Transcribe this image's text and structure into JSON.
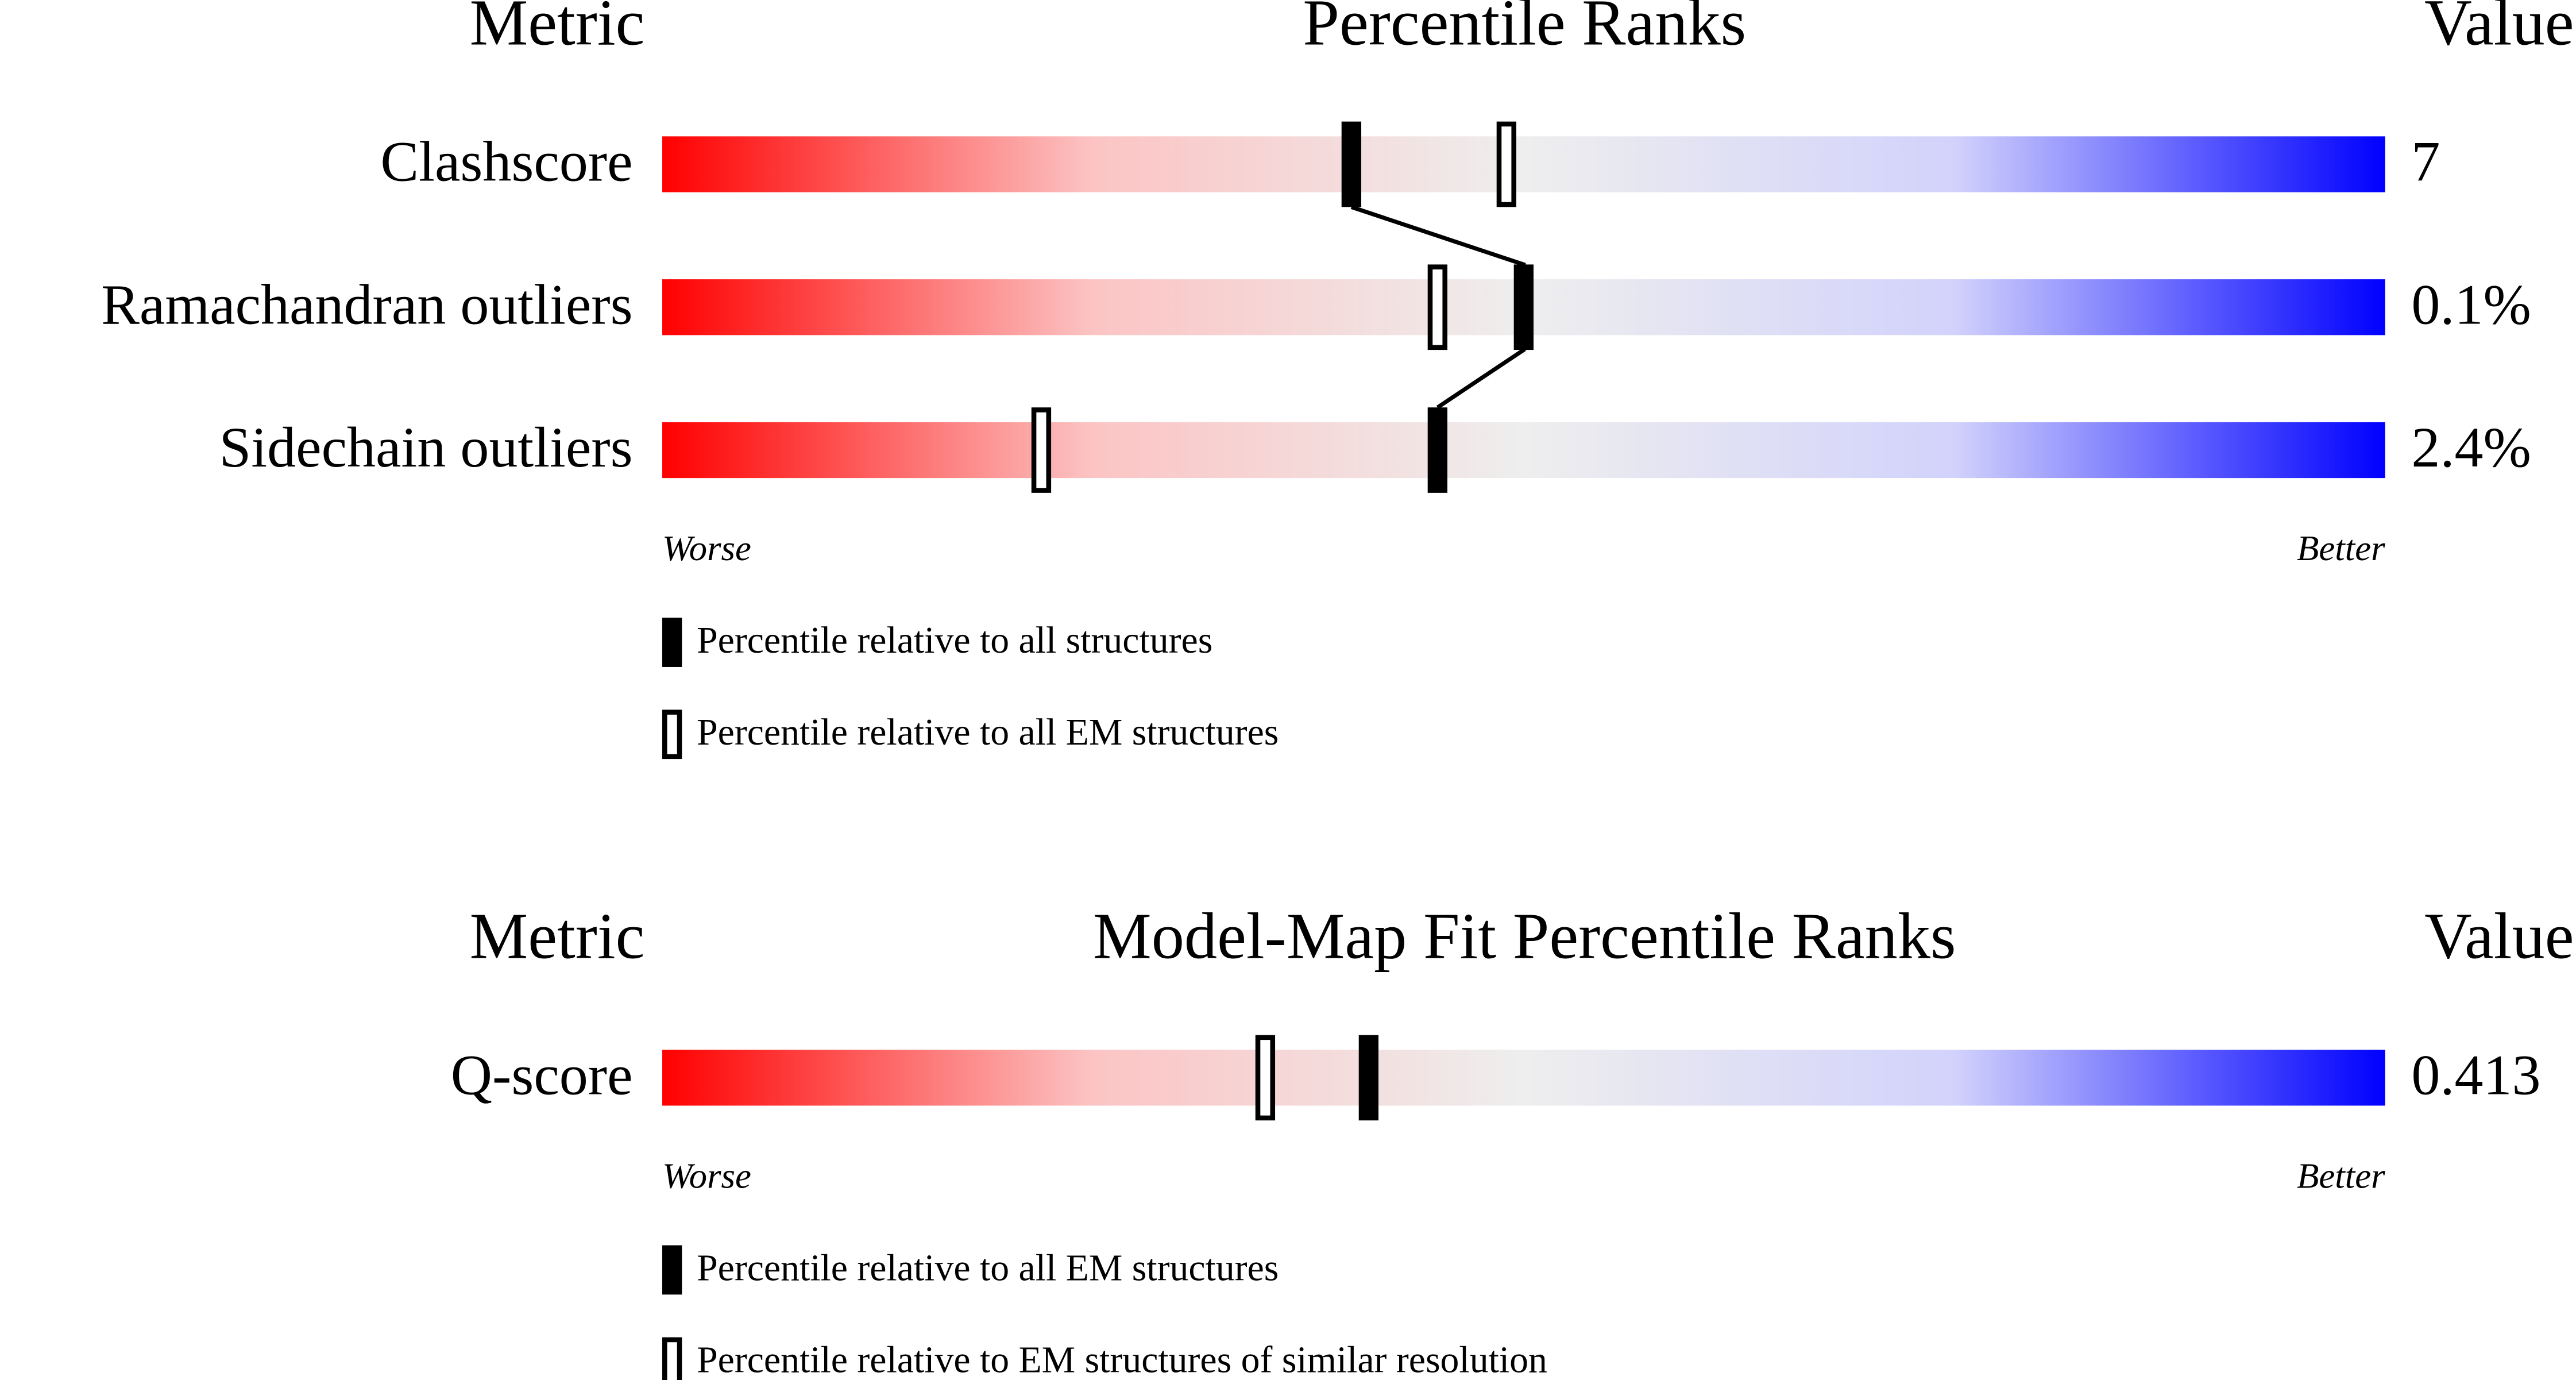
{
  "chart_data": [
    {
      "type": "percentile",
      "header": {
        "metric": "Metric",
        "title": "Percentile Ranks",
        "value": "Value"
      },
      "xlim": [
        0,
        100
      ],
      "categories": [
        "Clashscore",
        "Ramachandran outliers",
        "Sidechain outliers"
      ],
      "metric_values": [
        "7",
        "0.1%",
        "2.4%"
      ],
      "series": [
        {
          "name": "Percentile relative to all structures",
          "style": "filled",
          "values": [
            40,
            50,
            45
          ]
        },
        {
          "name": "Percentile relative to all EM structures",
          "style": "open",
          "values": [
            49,
            45,
            22
          ]
        }
      ],
      "low_label": "Worse",
      "high_label": "Better",
      "gradient": [
        "#ff0000",
        "#fcc4c4",
        "#eeeeee",
        "#d2d2fc",
        "#0000ff"
      ],
      "connect_filled": true
    },
    {
      "type": "percentile",
      "header": {
        "metric": "Metric",
        "title": "Model-Map Fit Percentile Ranks",
        "value": "Value"
      },
      "xlim": [
        0,
        100
      ],
      "categories": [
        "Q-score"
      ],
      "metric_values": [
        "0.413"
      ],
      "series": [
        {
          "name": "Percentile relative to all EM structures",
          "style": "filled",
          "values": [
            41
          ]
        },
        {
          "name": "Percentile relative to EM structures of similar resolution",
          "style": "open",
          "values": [
            35
          ]
        }
      ],
      "low_label": "Worse",
      "high_label": "Better",
      "gradient": [
        "#ff0000",
        "#fcc4c4",
        "#eeeeee",
        "#d2d2fc",
        "#0000ff"
      ],
      "connect_filled": true
    }
  ]
}
